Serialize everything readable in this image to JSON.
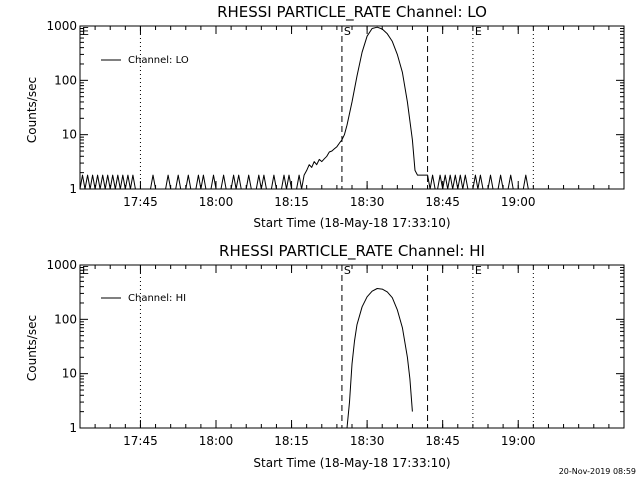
{
  "footer": {
    "timestamp": "20-Nov-2019 08:59"
  },
  "chart_data": [
    {
      "type": "line",
      "title": "RHESSI PARTICLE_RATE Channel: LO",
      "xlabel": "Start Time (18-May-18 17:33:10)",
      "ylabel": "Counts/sec",
      "x_unit": "minutes since 17:33:10",
      "xlim": [
        0,
        108
      ],
      "xticks": [
        {
          "x": 12,
          "label": "17:45"
        },
        {
          "x": 27,
          "label": "18:00"
        },
        {
          "x": 42,
          "label": "18:15"
        },
        {
          "x": 57,
          "label": "18:30"
        },
        {
          "x": 72,
          "label": "18:45"
        },
        {
          "x": 87,
          "label": "19:00"
        }
      ],
      "yscale": "log",
      "ylim": [
        1,
        1000
      ],
      "yticks": [
        {
          "y": 1,
          "label": "1"
        },
        {
          "y": 10,
          "label": "10"
        },
        {
          "y": 100,
          "label": "100"
        },
        {
          "y": 1000,
          "label": "1000"
        }
      ],
      "legend": {
        "placement": "top-left",
        "entries": [
          "Channel: LO"
        ]
      },
      "markers": [
        {
          "x": 0,
          "style": "dotted",
          "label": "E"
        },
        {
          "x": 12,
          "style": "dotted",
          "label": ""
        },
        {
          "x": 52,
          "style": "dashed",
          "label": "S"
        },
        {
          "x": 69,
          "style": "dashed",
          "label": ""
        },
        {
          "x": 78,
          "style": "dotted",
          "label": "E"
        },
        {
          "x": 90,
          "style": "dotted",
          "label": ""
        }
      ],
      "series": [
        {
          "name": "Channel: LO",
          "points": [
            [
              0,
              1
            ],
            [
              0.5,
              1.8
            ],
            [
              1,
              1
            ],
            [
              1.5,
              1.8
            ],
            [
              2,
              1
            ],
            [
              2.5,
              1.8
            ],
            [
              3,
              1
            ],
            [
              3.5,
              1.8
            ],
            [
              4,
              1
            ],
            [
              4.5,
              1.8
            ],
            [
              5,
              1
            ],
            [
              5.5,
              1.8
            ],
            [
              6,
              1
            ],
            [
              6.5,
              1.8
            ],
            [
              7,
              1
            ],
            [
              7.5,
              1.8
            ],
            [
              8,
              1
            ],
            [
              8.5,
              1.8
            ],
            [
              9,
              1
            ],
            [
              9.5,
              1.8
            ],
            [
              10,
              1
            ],
            [
              10.5,
              1.8
            ],
            [
              11,
              1
            ],
            [
              13,
              1
            ],
            [
              14,
              1
            ],
            [
              14.5,
              1.8
            ],
            [
              15,
              1
            ],
            [
              17,
              1
            ],
            [
              17.5,
              1.8
            ],
            [
              18,
              1
            ],
            [
              19,
              1
            ],
            [
              19.5,
              1.8
            ],
            [
              20,
              1
            ],
            [
              21,
              1
            ],
            [
              21.5,
              1.8
            ],
            [
              22,
              1
            ],
            [
              23,
              1
            ],
            [
              23.5,
              1.8
            ],
            [
              24,
              1
            ],
            [
              24.5,
              1.8
            ],
            [
              25,
              1
            ],
            [
              26,
              1
            ],
            [
              26.5,
              1.8
            ],
            [
              27,
              1
            ],
            [
              28,
              1
            ],
            [
              28.5,
              1.8
            ],
            [
              29,
              1
            ],
            [
              30,
              1
            ],
            [
              30.5,
              1.8
            ],
            [
              31,
              1
            ],
            [
              31.5,
              1.8
            ],
            [
              32,
              1
            ],
            [
              33,
              1
            ],
            [
              33.5,
              1.8
            ],
            [
              34,
              1
            ],
            [
              35,
              1
            ],
            [
              35.5,
              1.8
            ],
            [
              36,
              1
            ],
            [
              36.5,
              1.8
            ],
            [
              37,
              1
            ],
            [
              38,
              1
            ],
            [
              38.5,
              1.8
            ],
            [
              39,
              1
            ],
            [
              40,
              1
            ],
            [
              40.5,
              1.8
            ],
            [
              41,
              1
            ],
            [
              41.5,
              1.8
            ],
            [
              42,
              1
            ],
            [
              43,
              1
            ],
            [
              43.5,
              1.8
            ],
            [
              44,
              1
            ],
            [
              44.5,
              1.8
            ],
            [
              45,
              2.2
            ],
            [
              45.5,
              2.8
            ],
            [
              46,
              2.5
            ],
            [
              46.5,
              3.2
            ],
            [
              47,
              2.8
            ],
            [
              47.5,
              3.5
            ],
            [
              48,
              3.2
            ],
            [
              48.5,
              3.6
            ],
            [
              49,
              4
            ],
            [
              49.5,
              4.8
            ],
            [
              50,
              5
            ],
            [
              50.5,
              5.5
            ],
            [
              51,
              6
            ],
            [
              51.5,
              7
            ],
            [
              52,
              8
            ],
            [
              52.5,
              10
            ],
            [
              53,
              15
            ],
            [
              54,
              40
            ],
            [
              55,
              120
            ],
            [
              56,
              330
            ],
            [
              57,
              650
            ],
            [
              58,
              900
            ],
            [
              59,
              950
            ],
            [
              60,
              880
            ],
            [
              61,
              720
            ],
            [
              62,
              520
            ],
            [
              63,
              300
            ],
            [
              64,
              140
            ],
            [
              65,
              40
            ],
            [
              66,
              8
            ],
            [
              66.5,
              2.2
            ],
            [
              67,
              1.8
            ],
            [
              67.5,
              1.8
            ],
            [
              68,
              1.8
            ],
            [
              69,
              1.8
            ],
            [
              69.5,
              1
            ],
            [
              70,
              1.8
            ],
            [
              70.5,
              1
            ],
            [
              71,
              1
            ],
            [
              71.5,
              1.8
            ],
            [
              72,
              1
            ],
            [
              72.5,
              1.8
            ],
            [
              73,
              1
            ],
            [
              73.5,
              1.8
            ],
            [
              74,
              1
            ],
            [
              74.5,
              1.8
            ],
            [
              75,
              1
            ],
            [
              75.5,
              1.8
            ],
            [
              76,
              1
            ],
            [
              76.5,
              1.8
            ],
            [
              77,
              1
            ],
            [
              78,
              1
            ],
            [
              78.5,
              1.8
            ],
            [
              79,
              1
            ],
            [
              79.5,
              1.8
            ],
            [
              80,
              1
            ],
            [
              81,
              1
            ],
            [
              81.5,
              1.8
            ],
            [
              82,
              1
            ],
            [
              83,
              1
            ],
            [
              83.5,
              1.8
            ],
            [
              84,
              1
            ],
            [
              85,
              1
            ],
            [
              85.5,
              1.8
            ],
            [
              86,
              1
            ],
            [
              88,
              1
            ],
            [
              88.5,
              1.8
            ],
            [
              89,
              1
            ]
          ]
        }
      ]
    },
    {
      "type": "line",
      "title": "RHESSI PARTICLE_RATE Channel: HI",
      "xlabel": "Start Time (18-May-18 17:33:10)",
      "ylabel": "Counts/sec",
      "x_unit": "minutes since 17:33:10",
      "xlim": [
        0,
        108
      ],
      "xticks": [
        {
          "x": 12,
          "label": "17:45"
        },
        {
          "x": 27,
          "label": "18:00"
        },
        {
          "x": 42,
          "label": "18:15"
        },
        {
          "x": 57,
          "label": "18:30"
        },
        {
          "x": 72,
          "label": "18:45"
        },
        {
          "x": 87,
          "label": "19:00"
        }
      ],
      "yscale": "log",
      "ylim": [
        1,
        1000
      ],
      "yticks": [
        {
          "y": 1,
          "label": "1"
        },
        {
          "y": 10,
          "label": "10"
        },
        {
          "y": 100,
          "label": "100"
        },
        {
          "y": 1000,
          "label": "1000"
        }
      ],
      "legend": {
        "placement": "top-left",
        "entries": [
          "Channel: HI"
        ]
      },
      "markers": [
        {
          "x": 0,
          "style": "dotted",
          "label": "E"
        },
        {
          "x": 12,
          "style": "dotted",
          "label": ""
        },
        {
          "x": 52,
          "style": "dashed",
          "label": "S"
        },
        {
          "x": 69,
          "style": "dashed",
          "label": ""
        },
        {
          "x": 78,
          "style": "dotted",
          "label": "E"
        },
        {
          "x": 90,
          "style": "dotted",
          "label": ""
        }
      ],
      "series": [
        {
          "name": "Channel: HI",
          "points": [
            [
              53,
              1
            ],
            [
              53.5,
              3
            ],
            [
              54,
              15
            ],
            [
              54.5,
              40
            ],
            [
              55,
              80
            ],
            [
              56,
              170
            ],
            [
              57,
              260
            ],
            [
              58,
              330
            ],
            [
              59,
              370
            ],
            [
              60,
              360
            ],
            [
              61,
              320
            ],
            [
              62,
              250
            ],
            [
              63,
              150
            ],
            [
              64,
              70
            ],
            [
              65,
              20
            ],
            [
              65.5,
              8
            ],
            [
              66,
              2
            ]
          ]
        }
      ]
    }
  ]
}
